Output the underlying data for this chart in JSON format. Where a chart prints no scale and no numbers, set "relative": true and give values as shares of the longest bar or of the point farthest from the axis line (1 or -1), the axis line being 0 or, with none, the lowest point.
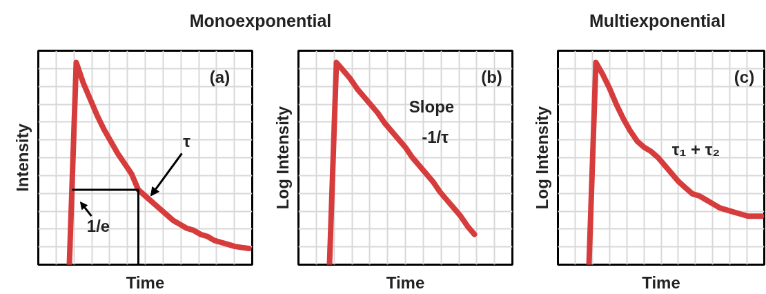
{
  "chart_data": [
    {
      "type": "line",
      "title": "Monoexponential",
      "xlabel": "Time",
      "ylabel": "Intensity",
      "relative": true,
      "grid": true,
      "categories": [
        null,
        null,
        null,
        null,
        null,
        null,
        null,
        null,
        null,
        null,
        null,
        null,
        null,
        null,
        null,
        null,
        null,
        null,
        null,
        null,
        null,
        null,
        null,
        null,
        null,
        null,
        null
      ],
      "series": [
        {
          "color": "#d63c3c",
          "values": [
            0,
            1,
            0.9,
            0.82,
            0.74,
            0.67,
            0.61,
            0.55,
            0.5,
            0.45,
            0.37,
            0.34,
            0.31,
            0.28,
            0.25,
            0.22,
            0.2,
            0.18,
            0.17,
            0.15,
            0.14,
            0.12,
            0.11,
            0.1,
            0.09,
            0.085,
            0.08
          ]
        }
      ],
      "annotations": [
        "(a)",
        "τ",
        "1/e"
      ]
    },
    {
      "type": "line",
      "xlabel": "Time",
      "ylabel": "Log Intensity",
      "relative": true,
      "grid": true,
      "categories": [
        null,
        null,
        null,
        null,
        null,
        null,
        null,
        null,
        null,
        null,
        null,
        null,
        null,
        null,
        null,
        null,
        null,
        null,
        null,
        null,
        null,
        null
      ],
      "series": [
        {
          "color": "#d63c3c",
          "values": [
            0,
            1,
            0.96,
            0.92,
            0.87,
            0.83,
            0.79,
            0.75,
            0.7,
            0.66,
            0.62,
            0.58,
            0.53,
            0.49,
            0.45,
            0.41,
            0.36,
            0.32,
            0.28,
            0.24,
            0.19,
            0.15
          ]
        }
      ],
      "annotations": [
        "(b)",
        "Slope",
        "-1/τ"
      ]
    },
    {
      "type": "line",
      "title": "Multiexponential",
      "xlabel": "Time",
      "ylabel": "Log Intensity",
      "relative": true,
      "grid": true,
      "categories": [
        null,
        null,
        null,
        null,
        null,
        null,
        null,
        null,
        null,
        null,
        null,
        null,
        null,
        null,
        null,
        null,
        null,
        null,
        null,
        null,
        null,
        null,
        null,
        null,
        null,
        null
      ],
      "series": [
        {
          "color": "#d63c3c",
          "values": [
            0,
            1,
            0.94,
            0.87,
            0.79,
            0.72,
            0.66,
            0.61,
            0.58,
            0.56,
            0.53,
            0.49,
            0.45,
            0.41,
            0.38,
            0.35,
            0.34,
            0.32,
            0.3,
            0.28,
            0.27,
            0.26,
            0.25,
            0.24,
            0.24,
            0.24
          ]
        }
      ],
      "annotations": [
        "(c)",
        "τ₁ + τ₂"
      ]
    }
  ]
}
